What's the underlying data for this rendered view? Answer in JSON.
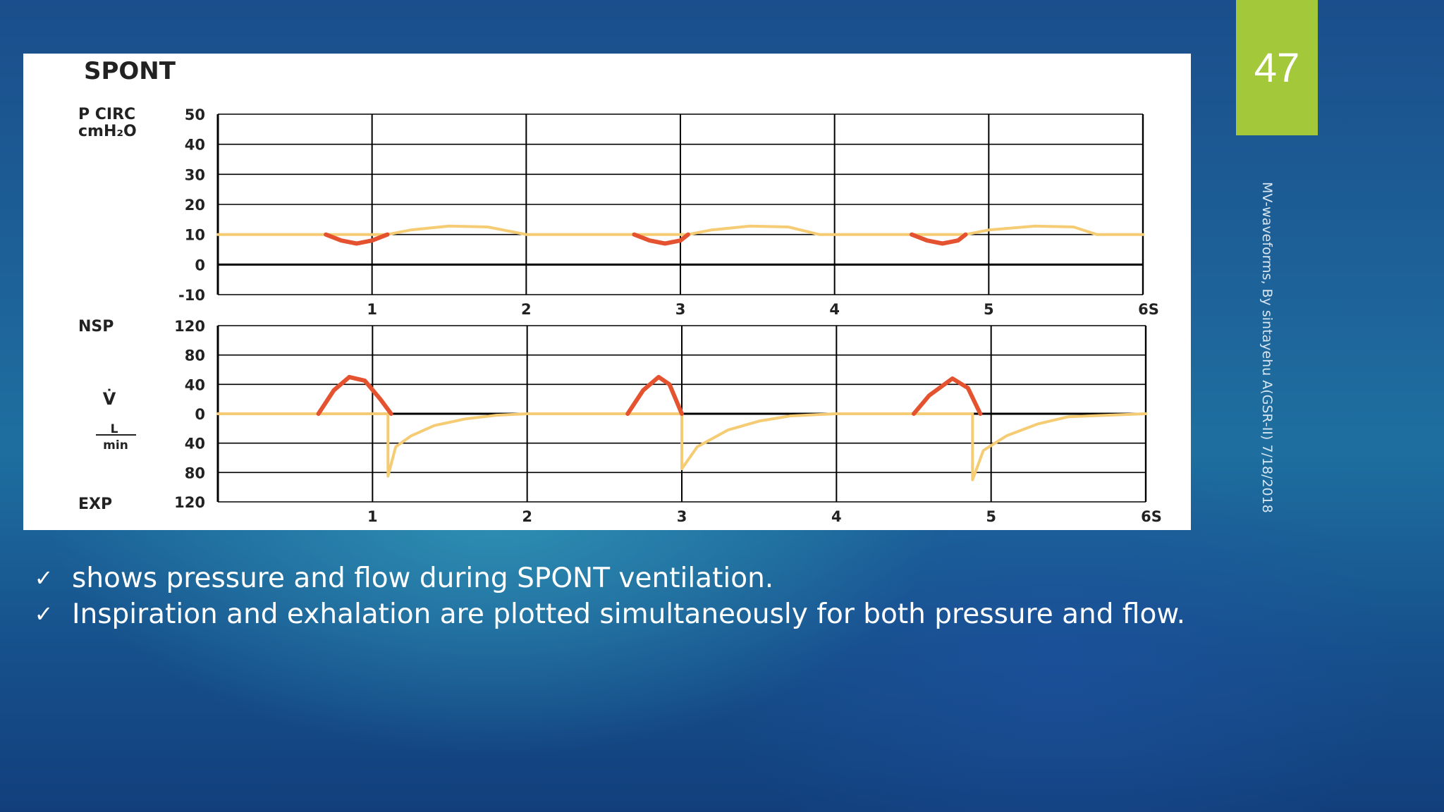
{
  "slide": {
    "number": "47",
    "footer_text": "MV-waveforms, By sintayehu A(GSR-II)",
    "date": "7/18/2018"
  },
  "bullets": [
    "shows pressure and flow during SPONT ventilation.",
    "Inspiration and exhalation are plotted simultaneously for both pressure and flow."
  ],
  "colors": {
    "baseline": "#f5cc74",
    "patient_effort": "#e4522f",
    "grid": "#000000",
    "slide_number_bg": "#a3c93a"
  },
  "chart_data": [
    {
      "type": "line",
      "title": "SPONT",
      "ylabel_line1": "P CIRC",
      "ylabel_line2": "cmH₂O",
      "xlabel": "",
      "x_tick_labels": [
        "1",
        "2",
        "3",
        "4",
        "5",
        "6S"
      ],
      "y_tick_labels": [
        "50",
        "40",
        "30",
        "20",
        "10",
        "0",
        "-10"
      ],
      "y_ticks": [
        50,
        40,
        30,
        20,
        10,
        0,
        -10
      ],
      "xlim": [
        0,
        6
      ],
      "ylim": [
        -10,
        50
      ],
      "grid": true,
      "series": [
        {
          "color": "#f5cc74",
          "x": [
            0,
            0.7,
            1.1,
            1.25,
            1.5,
            1.75,
            2.0,
            2.7,
            3.05,
            3.2,
            3.45,
            3.7,
            3.9,
            4.5,
            4.85,
            5.0,
            5.3,
            5.55,
            5.7,
            6.0
          ],
          "y": [
            10,
            10,
            10,
            11.5,
            12.8,
            12.5,
            10,
            10,
            10,
            11.5,
            12.8,
            12.5,
            10,
            10,
            10,
            11.5,
            12.8,
            12.5,
            10,
            10
          ]
        },
        {
          "color": "#e4522f",
          "x": [
            0.7,
            0.8,
            0.9,
            1.0,
            1.1
          ],
          "y": [
            10,
            8,
            7,
            8,
            10
          ]
        },
        {
          "color": "#e4522f",
          "x": [
            2.7,
            2.8,
            2.9,
            3.0,
            3.05
          ],
          "y": [
            10,
            8,
            7,
            8,
            10
          ]
        },
        {
          "color": "#e4522f",
          "x": [
            4.5,
            4.6,
            4.7,
            4.8,
            4.85
          ],
          "y": [
            10,
            8,
            7,
            8,
            10
          ]
        }
      ]
    },
    {
      "type": "line",
      "ylabel_top": "NSP",
      "ylabel_mid": "V̇",
      "ylabel_unit_num": "L",
      "ylabel_unit_den": "min",
      "ylabel_bottom": "EXP",
      "xlabel": "",
      "x_tick_labels": [
        "1",
        "2",
        "3",
        "4",
        "5",
        "6S"
      ],
      "y_tick_labels": [
        "120",
        "80",
        "40",
        "0",
        "40",
        "80",
        "120"
      ],
      "y_ticks": [
        120,
        80,
        40,
        0,
        -40,
        -80,
        -120
      ],
      "xlim": [
        0,
        6
      ],
      "ylim": [
        -120,
        120
      ],
      "grid": true,
      "series": [
        {
          "color": "#f5cc74",
          "x": [
            0,
            0.65,
            1.1,
            1.1,
            1.15,
            1.25,
            1.4,
            1.6,
            1.8,
            2.0,
            2.65,
            3.0,
            3.0,
            3.1,
            3.3,
            3.5,
            3.7,
            4.0,
            4.5,
            4.88,
            4.88,
            4.95,
            5.1,
            5.3,
            5.5,
            6.0
          ],
          "y": [
            0,
            0,
            0,
            -85,
            -45,
            -30,
            -16,
            -7,
            -2,
            0,
            0,
            0,
            -75,
            -45,
            -22,
            -10,
            -3,
            0,
            0,
            0,
            -90,
            -50,
            -30,
            -14,
            -4,
            0
          ]
        },
        {
          "color": "#e4522f",
          "x": [
            0.65,
            0.75,
            0.85,
            0.95,
            1.05,
            1.12
          ],
          "y": [
            0,
            32,
            50,
            45,
            20,
            0
          ]
        },
        {
          "color": "#e4522f",
          "x": [
            2.65,
            2.75,
            2.85,
            2.92,
            3.0
          ],
          "y": [
            0,
            32,
            50,
            40,
            0
          ]
        },
        {
          "color": "#e4522f",
          "x": [
            4.5,
            4.6,
            4.75,
            4.85,
            4.93
          ],
          "y": [
            0,
            25,
            48,
            35,
            0
          ]
        }
      ]
    }
  ]
}
